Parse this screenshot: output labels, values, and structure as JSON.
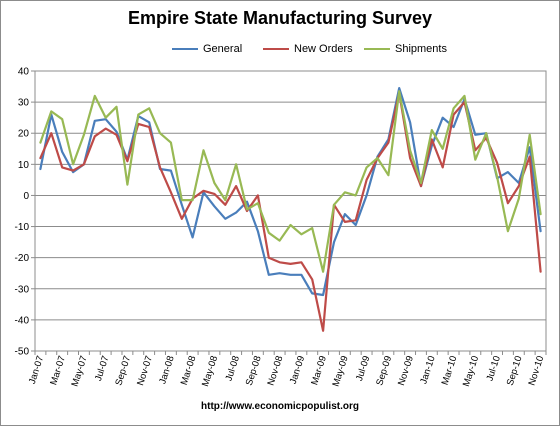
{
  "chart_data": {
    "type": "line",
    "title": "Empire State Manufacturing Survey",
    "xlabel": "",
    "ylabel": "",
    "ylim": [
      -50,
      40
    ],
    "yticks": [
      "40",
      "30",
      "20",
      "10",
      "0",
      "-10",
      "-20",
      "-30",
      "-40",
      "-50"
    ],
    "ytick_values": [
      40,
      30,
      20,
      10,
      0,
      -10,
      -20,
      -30,
      -40,
      -50
    ],
    "grid": true,
    "legend_position": "top",
    "x": [
      "Jan-07",
      "Feb-07",
      "Mar-07",
      "Apr-07",
      "May-07",
      "Jun-07",
      "Jul-07",
      "Aug-07",
      "Sep-07",
      "Oct-07",
      "Nov-07",
      "Dec-07",
      "Jan-08",
      "Feb-08",
      "Mar-08",
      "Apr-08",
      "May-08",
      "Jun-08",
      "Jul-08",
      "Aug-08",
      "Sep-08",
      "Oct-08",
      "Nov-08",
      "Dec-08",
      "Jan-09",
      "Feb-09",
      "Mar-09",
      "Apr-09",
      "May-09",
      "Jun-09",
      "Jul-09",
      "Aug-09",
      "Sep-09",
      "Oct-09",
      "Nov-09",
      "Dec-09",
      "Jan-10",
      "Feb-10",
      "Mar-10",
      "Apr-10",
      "May-10",
      "Jun-10",
      "Jul-10",
      "Aug-10",
      "Sep-10",
      "Oct-10",
      "Nov-10"
    ],
    "xtick_labels": [
      "Jan-07",
      "Mar-07",
      "May-07",
      "Jul-07",
      "Sep-07",
      "Nov-07",
      "Jan-08",
      "Mar-08",
      "May-08",
      "Jul-08",
      "Sep-08",
      "Nov-08",
      "Jan-09",
      "Mar-09",
      "May-09",
      "Jul-09",
      "Sep-09",
      "Nov-09",
      "Jan-10",
      "Mar-10",
      "May-10",
      "Jul-10",
      "Sep-10",
      "Nov-10"
    ],
    "series": [
      {
        "name": "General",
        "color": "#4a7ebb",
        "values": [
          8.5,
          26,
          14,
          7.5,
          10,
          24,
          24.5,
          20.5,
          11.5,
          25.5,
          23.5,
          8.5,
          8,
          -3,
          -13.5,
          1,
          -3.5,
          -7.5,
          -5.5,
          -2,
          -11.5,
          -25.5,
          -25,
          -25.5,
          -25.5,
          -31.5,
          -32,
          -15,
          -6,
          -9.5,
          0,
          12.5,
          18,
          34.5,
          23.5,
          3,
          16,
          25,
          22,
          31,
          19.5,
          20,
          5.5,
          7.5,
          4,
          15.5,
          -11.5
        ]
      },
      {
        "name": "New Orders",
        "color": "#be4b48",
        "values": [
          12,
          20,
          9,
          8,
          10,
          19,
          21.5,
          19.5,
          11,
          23,
          22,
          9,
          1,
          -7.5,
          -1,
          1.5,
          0.5,
          -3,
          3,
          -5,
          0,
          -20,
          -21.5,
          -22,
          -21.5,
          -27,
          -43.5,
          -3,
          -8.5,
          -8,
          5,
          12,
          17,
          33,
          12,
          3,
          18,
          9,
          26,
          30,
          14.5,
          18.5,
          10.5,
          -2.5,
          3,
          12.5,
          -24.5
        ]
      },
      {
        "name": "Shipments",
        "color": "#98b954",
        "values": [
          17,
          27,
          24.5,
          10,
          19.5,
          32,
          25,
          28.5,
          3.5,
          26,
          28,
          20,
          17,
          -1.5,
          -1.5,
          14.5,
          4,
          -1.5,
          10,
          -4.5,
          -2.5,
          -12,
          -14.5,
          -9.5,
          -12.5,
          -10.5,
          -24.5,
          -3,
          1,
          0,
          9,
          12,
          6.5,
          33.5,
          14.5,
          4,
          21,
          15,
          28,
          32,
          11.5,
          20,
          6,
          -11.5,
          -1,
          19.5,
          -6
        ]
      }
    ]
  },
  "source_text": "http://www.economicpopulist.org"
}
